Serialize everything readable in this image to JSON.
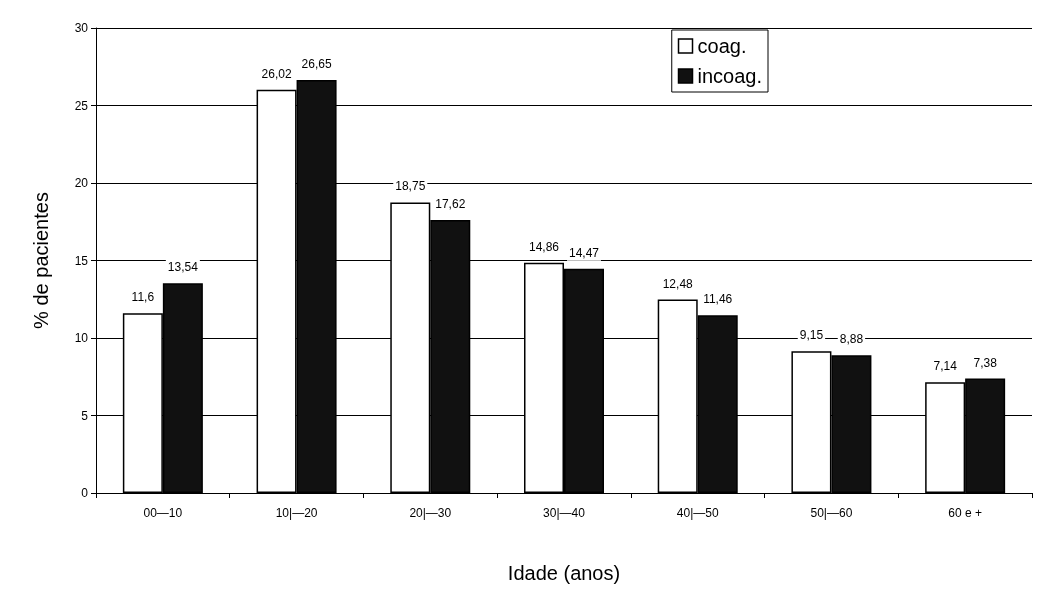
{
  "chart_data": {
    "type": "bar",
    "xlabel": "Idade (anos)",
    "ylabel": "% de pacientes",
    "categories": [
      "00—10",
      "10|—20",
      "20|—30",
      "30|—40",
      "40|—50",
      "50|—60",
      "60 e +"
    ],
    "series": [
      {
        "name": "coag.",
        "color": "#ffffff",
        "values": [
          11.6,
          26.02,
          18.75,
          14.86,
          12.48,
          9.15,
          7.14
        ],
        "value_labels": [
          "11,6",
          "26,02",
          "18,75",
          "14,86",
          "12,48",
          "9,15",
          "7,14"
        ]
      },
      {
        "name": "incoag.",
        "color": "#111111",
        "values": [
          13.54,
          26.65,
          17.62,
          14.47,
          11.46,
          8.88,
          7.38
        ],
        "value_labels": [
          "13,54",
          "26,65",
          "17,62",
          "14,47",
          "11,46",
          "8,88",
          "7,38"
        ]
      }
    ],
    "ylim": [
      0,
      30
    ],
    "yticks": [
      0,
      5,
      10,
      15,
      20,
      25,
      30
    ],
    "grid": "y",
    "legend": "top right"
  }
}
